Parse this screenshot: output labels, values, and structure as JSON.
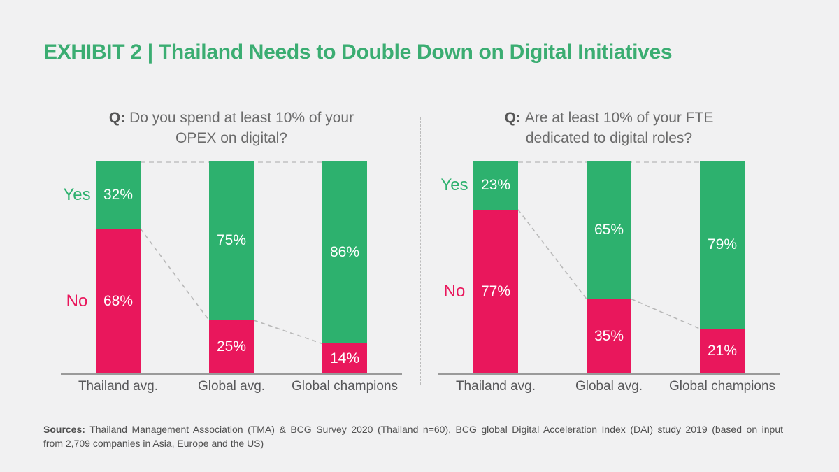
{
  "window": {
    "background": "#f1f1f2"
  },
  "header": {
    "title": "EXHIBIT 2 | Thailand Needs to Double Down on Digital Initiatives",
    "title_color": "#3bad72"
  },
  "colors": {
    "green": "#2db16e",
    "pink": "#e9175c",
    "axis_gray": "#9a9a9a",
    "dash_gray": "#b8b8b8",
    "question_gray": "#6b6b6b",
    "category_gray": "#58585a",
    "value_text": "#ffffff"
  },
  "chart_data": [
    {
      "type": "bar",
      "variant": "stacked-100-percent",
      "question_prefix": "Q:",
      "question": "Do you spend at least 10% of your OPEX on digital?",
      "question_lines": [
        "Do you spend at least 10% of your",
        "OPEX on digital?"
      ],
      "categories": [
        "Thailand avg.",
        "Global avg.",
        "Global champions"
      ],
      "series": [
        {
          "name": "Yes",
          "color": "#2db16e",
          "values": [
            32,
            75,
            86
          ]
        },
        {
          "name": "No",
          "color": "#e9175c",
          "values": [
            68,
            25,
            14
          ]
        }
      ],
      "value_suffix": "%",
      "ylim": [
        0,
        100
      ],
      "grid": false,
      "legend_position": "left-of-first-bar",
      "connectors": "dashed line at 100% top and dashed diagonals joining Yes/No boundaries between adjacent bars"
    },
    {
      "type": "bar",
      "variant": "stacked-100-percent",
      "question_prefix": "Q:",
      "question": "Are at least 10% of your FTE dedicated to digital roles?",
      "question_lines": [
        "Are at least 10% of your FTE",
        "dedicated to digital roles?"
      ],
      "categories": [
        "Thailand avg.",
        "Global avg.",
        "Global champions"
      ],
      "series": [
        {
          "name": "Yes",
          "color": "#2db16e",
          "values": [
            23,
            65,
            79
          ]
        },
        {
          "name": "No",
          "color": "#e9175c",
          "values": [
            77,
            35,
            21
          ]
        }
      ],
      "value_suffix": "%",
      "ylim": [
        0,
        100
      ],
      "grid": false,
      "legend_position": "left-of-first-bar",
      "connectors": "dashed line at 100% top and dashed diagonals joining Yes/No boundaries between adjacent bars"
    }
  ],
  "footer": {
    "sources_label": "Sources:",
    "sources_line1": "Thailand Management Association (TMA) & BCG Survey 2020 (Thailand n=60), BCG global Digital Acceleration Index (DAI) study 2019 (based on input",
    "sources_line2": "from 2,709 companies in Asia, Europe and the US)"
  }
}
